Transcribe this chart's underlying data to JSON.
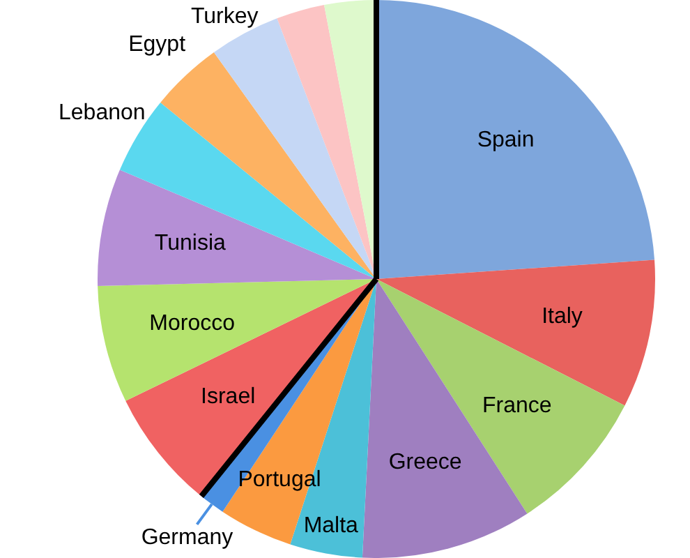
{
  "chart_data": {
    "type": "pie",
    "categories": [
      "Spain",
      "Italy",
      "France",
      "Greece",
      "Malta",
      "Portugal",
      "Germany",
      "Israel",
      "Morocco",
      "Tunisia",
      "Lebanon",
      "Egypt",
      "Turkey",
      null,
      null
    ],
    "values": [
      23.9,
      8.6,
      8.4,
      9.9,
      4.2,
      4.3,
      1.5,
      7.0,
      6.8,
      6.8,
      4.5,
      4.2,
      4.1,
      2.8,
      3.0
    ],
    "colors": [
      "#7ea6dc",
      "#e8625e",
      "#a7d16f",
      "#9f7fc0",
      "#4cc0d8",
      "#fb9a40",
      "#4a90e2",
      "#f06262",
      "#b5e36e",
      "#b58fd6",
      "#5ad8ef",
      "#fdb262",
      "#c5d7f5",
      "#fcc4c4",
      "#def9cc"
    ],
    "legend": false
  }
}
